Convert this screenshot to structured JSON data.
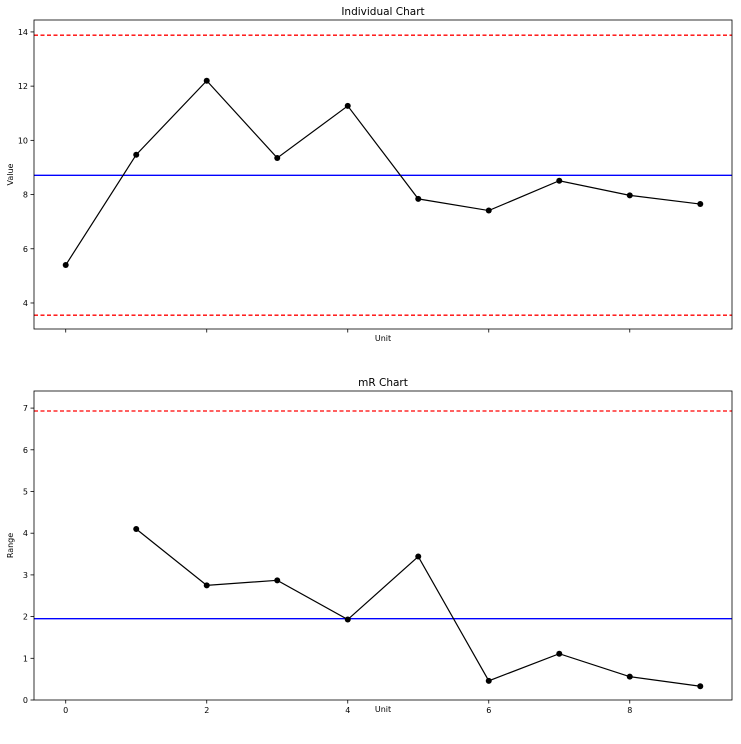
{
  "chart_data": [
    {
      "type": "line",
      "title": "Individual Chart",
      "xlabel": "Unit",
      "ylabel": "Value",
      "xlim": [
        -0.45,
        9.45
      ],
      "ylim": [
        3.04,
        14.44
      ],
      "xticks": [
        0,
        2,
        4,
        6,
        8
      ],
      "xtick_labels_shown": false,
      "yticks": [
        4,
        6,
        8,
        10,
        12,
        14
      ],
      "grid": false,
      "x": [
        0,
        1,
        2,
        3,
        4,
        5,
        6,
        7,
        8,
        9
      ],
      "values": [
        5.4,
        9.47,
        12.2,
        9.35,
        11.27,
        7.84,
        7.41,
        8.51,
        7.97,
        7.65
      ],
      "center_line": 8.71,
      "ucl": 13.88,
      "lcl": 3.55,
      "colors": {
        "series": "#000000",
        "center": "#0000ff",
        "limits": "#ff0000"
      }
    },
    {
      "type": "line",
      "title": "mR Chart",
      "xlabel": "Unit",
      "ylabel": "Range",
      "xlim": [
        -0.45,
        9.45
      ],
      "ylim": [
        0,
        7.41
      ],
      "xticks": [
        0,
        2,
        4,
        6,
        8
      ],
      "xtick_labels_shown": true,
      "yticks": [
        0,
        1,
        2,
        3,
        4,
        5,
        6,
        7
      ],
      "grid": false,
      "x": [
        1,
        2,
        3,
        4,
        5,
        6,
        7,
        8,
        9
      ],
      "values": [
        4.1,
        2.75,
        2.87,
        1.93,
        3.44,
        0.46,
        1.11,
        0.56,
        0.33
      ],
      "center_line": 1.95,
      "ucl": 6.93,
      "colors": {
        "series": "#000000",
        "center": "#0000ff",
        "limits": "#ff0000"
      }
    }
  ]
}
